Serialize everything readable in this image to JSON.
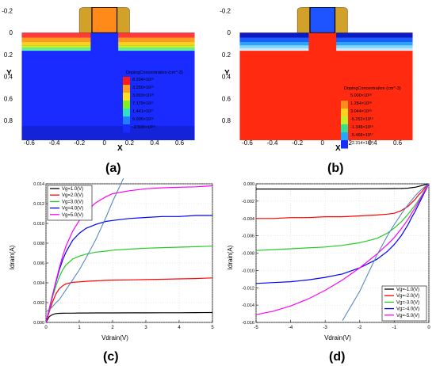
{
  "colors": {
    "n_bulk": "#1a2bff",
    "p_bulk": "#ff2a10",
    "gate_metal": "#d2a12a",
    "black": "#000000",
    "red": "#ff0000",
    "green": "#22cc22",
    "blue": "#0000ff",
    "magenta": "#ff00ff",
    "fit": "#4a7fc2"
  },
  "panels": {
    "a": {
      "label": "(a)",
      "ylabel": "Y",
      "xlabel": "X",
      "xticks": [
        "-0.6",
        "-0.4",
        "-0.2",
        "0",
        "0.2",
        "0.4",
        "0.6"
      ],
      "yticks": [
        "-0.2",
        "0",
        "0.2",
        "0.4",
        "0.6",
        "0.8"
      ],
      "colorbar_title": "DopingConcentration (cm^-3)",
      "colorbar_values": [
        "8.204×10¹⁹",
        "3.250×10¹⁹",
        "3.003×10¹⁸",
        "7.179×10¹⁷",
        "1.441×10¹⁷",
        "5.005×10¹⁶",
        "-2.500×10¹⁶"
      ]
    },
    "b": {
      "label": "(b)",
      "ylabel": "Y",
      "xlabel": "X",
      "xticks": [
        "-0.6",
        "-0.4",
        "-0.2",
        "0",
        "0.2",
        "0.4",
        "0.6"
      ],
      "yticks": [
        "-0.2",
        "0",
        "0.2",
        "0.4",
        "0.6",
        "0.8"
      ],
      "colorbar_title": "DopingConcentration (cm^-3)",
      "colorbar_values": [
        "5.000×10¹⁶",
        "1.284×10¹⁶",
        "3.044×10¹⁵",
        "-5.252×10¹⁵",
        "-1.348×10¹⁶",
        "-5.468×10¹⁷",
        "-2.314×10²⁰"
      ]
    },
    "c": {
      "label": "(c)",
      "xlabel": "Vdrain(V)",
      "ylabel": "Idrain(A)",
      "xticks": [
        "0",
        "1",
        "2",
        "3",
        "4",
        "5"
      ],
      "yticks": [
        "0.000",
        "0.002",
        "0.004",
        "0.006",
        "0.008",
        "0.010",
        "0.012",
        "0.014"
      ]
    },
    "d": {
      "label": "(d)",
      "xlabel": "Vdrain(V)",
      "ylabel": "Idrain(A)",
      "xticks": [
        "-5",
        "-4",
        "-3",
        "-2",
        "-1",
        "0"
      ],
      "yticks": [
        "0.000",
        "-0.002",
        "-0.004",
        "-0.006",
        "-0.008",
        "-0.010",
        "-0.012",
        "-0.014",
        "-0.016"
      ]
    }
  },
  "chart_data": [
    {
      "type": "heatmap",
      "panel": "a",
      "title": "",
      "xlabel": "X",
      "ylabel": "Y",
      "xlim": [
        -0.72,
        0.78
      ],
      "ylim": [
        -0.24,
        0.98
      ],
      "colorbar_title": "DopingConcentration (cm^-3)",
      "colorbar_values": [
        "8.204×10¹⁹",
        "3.250×10¹⁹",
        "3.003×10¹⁸",
        "7.179×10¹⁷",
        "1.441×10¹⁷",
        "5.005×10¹⁶",
        "-2.500×10¹⁶"
      ]
    },
    {
      "type": "heatmap",
      "panel": "b",
      "title": "",
      "xlabel": "X",
      "ylabel": "Y",
      "xlim": [
        -0.72,
        0.78
      ],
      "ylim": [
        -0.24,
        0.98
      ],
      "colorbar_title": "DopingConcentration (cm^-3)",
      "colorbar_values": [
        "5.000×10¹⁶",
        "1.284×10¹⁶",
        "3.044×10¹⁵",
        "-5.252×10¹⁵",
        "-1.348×10¹⁶",
        "-5.468×10¹⁷",
        "-2.314×10²⁰"
      ]
    },
    {
      "type": "line",
      "panel": "c",
      "xlabel": "Vdrain(V)",
      "ylabel": "Idrain(A)",
      "xlim": [
        0,
        5
      ],
      "ylim": [
        0,
        0.014
      ],
      "x": [
        0,
        0.1,
        0.2,
        0.3,
        0.4,
        0.5,
        0.6,
        0.8,
        1.0,
        1.2,
        1.5,
        1.8,
        2.0,
        2.5,
        3.0,
        3.5,
        4.0,
        4.5,
        5.0
      ],
      "series": [
        {
          "name": "Vg=1.0(V)",
          "color": "#000000",
          "values": [
            0,
            0.0006,
            0.0008,
            0.0009,
            0.00092,
            0.00093,
            0.00094,
            0.00094,
            0.00095,
            0.00095,
            0.00096,
            0.00096,
            0.00096,
            0.00097,
            0.00097,
            0.00098,
            0.00098,
            0.00099,
            0.001
          ]
        },
        {
          "name": "Vg=2.0(V)",
          "color": "#ff0000",
          "values": [
            0,
            0.0011,
            0.0021,
            0.0029,
            0.0034,
            0.0037,
            0.0039,
            0.00405,
            0.0041,
            0.00415,
            0.0042,
            0.00425,
            0.00427,
            0.0043,
            0.00433,
            0.00436,
            0.0044,
            0.00443,
            0.0045
          ]
        },
        {
          "name": "Vg=3.0(V)",
          "color": "#22cc22",
          "values": [
            0,
            0.0013,
            0.0026,
            0.0037,
            0.0046,
            0.0053,
            0.0058,
            0.0064,
            0.0067,
            0.0069,
            0.0071,
            0.0072,
            0.0073,
            0.0074,
            0.0075,
            0.00755,
            0.0076,
            0.00765,
            0.0077
          ]
        },
        {
          "name": "Vg=4.0(V)",
          "color": "#0000ff",
          "values": [
            0,
            0.0014,
            0.0028,
            0.0041,
            0.0053,
            0.0063,
            0.0071,
            0.0083,
            0.009,
            0.0095,
            0.0099,
            0.0102,
            0.0103,
            0.0105,
            0.0106,
            0.0107,
            0.0107,
            0.0108,
            0.0108
          ]
        },
        {
          "name": "Vg=5.0(V)",
          "color": "#ff00ff",
          "values": [
            0,
            0.0014,
            0.0028,
            0.0042,
            0.0055,
            0.0067,
            0.0077,
            0.0092,
            0.0103,
            0.0112,
            0.0121,
            0.0127,
            0.013,
            0.0133,
            0.0135,
            0.0136,
            0.01365,
            0.0137,
            0.0138
          ]
        },
        {
          "name": "",
          "color": "#4a7fc2",
          "values": [
            0.0011,
            0.0013,
            0.0016,
            0.002,
            0.0023,
            0.0028,
            0.0033,
            0.0043,
            0.0053,
            0.0065,
            0.0084,
            0.0106,
            0.0122,
            0.0158,
            null,
            null,
            null,
            null,
            null
          ]
        }
      ],
      "legend_position": "top-left"
    },
    {
      "type": "line",
      "panel": "d",
      "xlabel": "Vdrain(V)",
      "ylabel": "Idrain(A)",
      "xlim": [
        -5,
        0
      ],
      "ylim": [
        -0.016,
        0
      ],
      "x": [
        -5,
        -4.5,
        -4,
        -3.5,
        -3,
        -2.5,
        -2,
        -1.5,
        -1.2,
        -1,
        -0.8,
        -0.6,
        -0.5,
        -0.4,
        -0.3,
        -0.2,
        -0.1,
        0
      ],
      "series": [
        {
          "name": "Vg=-1.0(V)",
          "color": "#000000",
          "values": [
            -0.0006,
            -0.0006,
            -0.0006,
            -0.0006,
            -0.0006,
            -0.0006,
            -0.00058,
            -0.00057,
            -0.00056,
            -0.00055,
            -0.00054,
            -0.0005,
            -0.00045,
            -0.0004,
            -0.0003,
            -0.0002,
            -0.0001,
            0
          ]
        },
        {
          "name": "Vg=-2.0(V)",
          "color": "#ff0000",
          "values": [
            -0.004,
            -0.004,
            -0.0039,
            -0.0039,
            -0.0038,
            -0.0038,
            -0.0037,
            -0.0036,
            -0.0035,
            -0.0034,
            -0.0031,
            -0.0026,
            -0.0022,
            -0.0018,
            -0.0013,
            -0.0009,
            -0.0004,
            0
          ]
        },
        {
          "name": "Vg=-3.0(V)",
          "color": "#22cc22",
          "values": [
            -0.0077,
            -0.0076,
            -0.0075,
            -0.0074,
            -0.0073,
            -0.0071,
            -0.0068,
            -0.0063,
            -0.0057,
            -0.0051,
            -0.0044,
            -0.0035,
            -0.003,
            -0.0025,
            -0.0019,
            -0.0013,
            -0.0006,
            0
          ]
        },
        {
          "name": "Vg=-4.0(V)",
          "color": "#0000ff",
          "values": [
            -0.0115,
            -0.0114,
            -0.0113,
            -0.0111,
            -0.0108,
            -0.0104,
            -0.0097,
            -0.0087,
            -0.0078,
            -0.007,
            -0.006,
            -0.0047,
            -0.0039,
            -0.0032,
            -0.0024,
            -0.0016,
            -0.0008,
            0
          ]
        },
        {
          "name": "Vg=-5.0(V)",
          "color": "#ff00ff",
          "values": [
            -0.0151,
            -0.0147,
            -0.0141,
            -0.0133,
            -0.0123,
            -0.0111,
            -0.0097,
            -0.0081,
            -0.007,
            -0.0062,
            -0.0052,
            -0.0041,
            -0.0034,
            -0.0028,
            -0.0021,
            -0.0014,
            -0.0007,
            0
          ]
        },
        {
          "name": "",
          "color": "#4a7fc2",
          "values": [
            null,
            null,
            null,
            null,
            null,
            -0.0158,
            -0.0124,
            -0.0082,
            -0.006,
            -0.0047,
            -0.0035,
            -0.0024,
            -0.0019,
            -0.0014,
            -0.001,
            -0.0006,
            -0.0003,
            0
          ]
        }
      ],
      "legend_position": "bottom-right"
    }
  ]
}
